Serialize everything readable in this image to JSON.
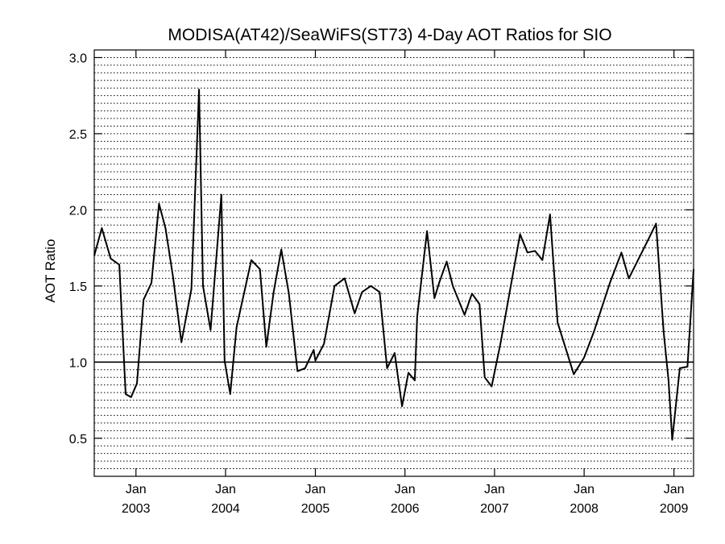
{
  "chart_data": {
    "type": "line",
    "title": "MODISA(AT42)/SeaWiFS(ST73) 4-Day AOT Ratios for SIO",
    "xlabel": "",
    "ylabel": "AOT Ratio",
    "xlim": [
      "2002-07-15",
      "2009-03-22"
    ],
    "ylim": [
      0.25,
      3.05
    ],
    "y_ticks": [
      "0.5",
      "1.0",
      "1.5",
      "2.0",
      "2.5",
      "3.0"
    ],
    "y_tick_values": [
      0.5,
      1.0,
      1.5,
      2.0,
      2.5,
      3.0
    ],
    "x_ticks": [
      {
        "date": "2003-01-01",
        "month": "Jan",
        "year": "2003"
      },
      {
        "date": "2004-01-01",
        "month": "Jan",
        "year": "2004"
      },
      {
        "date": "2005-01-01",
        "month": "Jan",
        "year": "2005"
      },
      {
        "date": "2006-01-01",
        "month": "Jan",
        "year": "2006"
      },
      {
        "date": "2007-01-01",
        "month": "Jan",
        "year": "2007"
      },
      {
        "date": "2008-01-01",
        "month": "Jan",
        "year": "2008"
      },
      {
        "date": "2009-01-01",
        "month": "Jan",
        "year": "2009"
      }
    ],
    "grid": true,
    "grid_minor_step": 0.05,
    "reference_line": 1.0,
    "series": [
      {
        "x": [
          "2002-07-15",
          "2002-08-15",
          "2002-09-20",
          "2002-10-25",
          "2002-11-20",
          "2002-12-12",
          "2003-01-05",
          "2003-02-01",
          "2003-03-05",
          "2003-04-05",
          "2003-05-01",
          "2003-06-01",
          "2003-07-05",
          "2003-08-15",
          "2003-09-15",
          "2003-10-01",
          "2003-11-01",
          "2003-12-15",
          "2003-12-28",
          "2004-01-20",
          "2004-02-15",
          "2004-04-15",
          "2004-05-20",
          "2004-06-15",
          "2004-07-15",
          "2004-08-15",
          "2004-09-15",
          "2004-10-20",
          "2004-11-20",
          "2004-12-25",
          "2005-01-01",
          "2005-02-05",
          "2005-03-20",
          "2005-04-30",
          "2005-06-10",
          "2005-07-10",
          "2005-08-15",
          "2005-09-20",
          "2005-10-20",
          "2005-11-20",
          "2005-12-20",
          "2006-01-15",
          "2006-02-10",
          "2006-02-20",
          "2006-04-01",
          "2006-05-01",
          "2006-05-20",
          "2006-06-20",
          "2006-07-15",
          "2006-09-01",
          "2006-10-01",
          "2006-11-01",
          "2006-11-22",
          "2006-12-20",
          "2007-01-25",
          "2007-04-15",
          "2007-05-15",
          "2007-06-15",
          "2007-07-15",
          "2007-08-15",
          "2007-09-15",
          "2007-11-20",
          "2008-01-01",
          "2008-02-10",
          "2008-04-15",
          "2008-06-01",
          "2008-07-01",
          "2008-09-20",
          "2008-10-20",
          "2008-11-20",
          "2008-12-10",
          "2008-12-25",
          "2009-01-25",
          "2009-02-25",
          "2009-03-22"
        ],
        "y": [
          1.7,
          1.88,
          1.68,
          1.64,
          0.79,
          0.77,
          0.86,
          1.41,
          1.52,
          2.04,
          1.88,
          1.56,
          1.13,
          1.48,
          2.79,
          1.5,
          1.21,
          2.1,
          1.01,
          0.79,
          1.23,
          1.67,
          1.61,
          1.1,
          1.46,
          1.74,
          1.45,
          0.94,
          0.96,
          1.08,
          1.01,
          1.12,
          1.5,
          1.55,
          1.32,
          1.46,
          1.5,
          1.46,
          0.96,
          1.06,
          0.71,
          0.93,
          0.88,
          1.3,
          1.86,
          1.42,
          1.52,
          1.66,
          1.5,
          1.31,
          1.45,
          1.38,
          0.9,
          0.84,
          1.12,
          1.84,
          1.72,
          1.73,
          1.67,
          1.97,
          1.26,
          0.92,
          1.03,
          1.2,
          1.52,
          1.72,
          1.55,
          1.81,
          1.91,
          1.2,
          0.88,
          0.49,
          0.96,
          0.97,
          1.61
        ]
      }
    ]
  }
}
